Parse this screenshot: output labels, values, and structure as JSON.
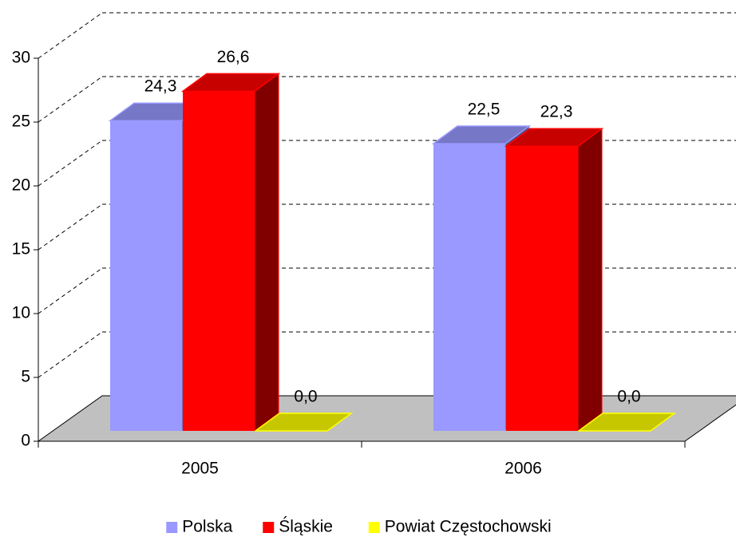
{
  "chart_data": {
    "type": "bar3d",
    "categories": [
      "2005",
      "2006"
    ],
    "series": [
      {
        "name": "Polska",
        "color": "#9999ff",
        "values": [
          24.3,
          22.5
        ],
        "value_labels": [
          "24,3",
          "22,5"
        ]
      },
      {
        "name": "Śląskie",
        "color": "#ff0000",
        "values": [
          26.6,
          22.3
        ],
        "value_labels": [
          "26,6",
          "22,3"
        ]
      },
      {
        "name": "Powiat Częstochowski",
        "color": "#ffff00",
        "values": [
          0,
          0
        ],
        "value_labels": [
          "0,0",
          "0,0"
        ]
      }
    ],
    "ylim": [
      0,
      30
    ],
    "yticks": [
      0,
      5,
      10,
      15,
      20,
      25,
      30
    ],
    "grid": true,
    "legend": "bottom"
  }
}
